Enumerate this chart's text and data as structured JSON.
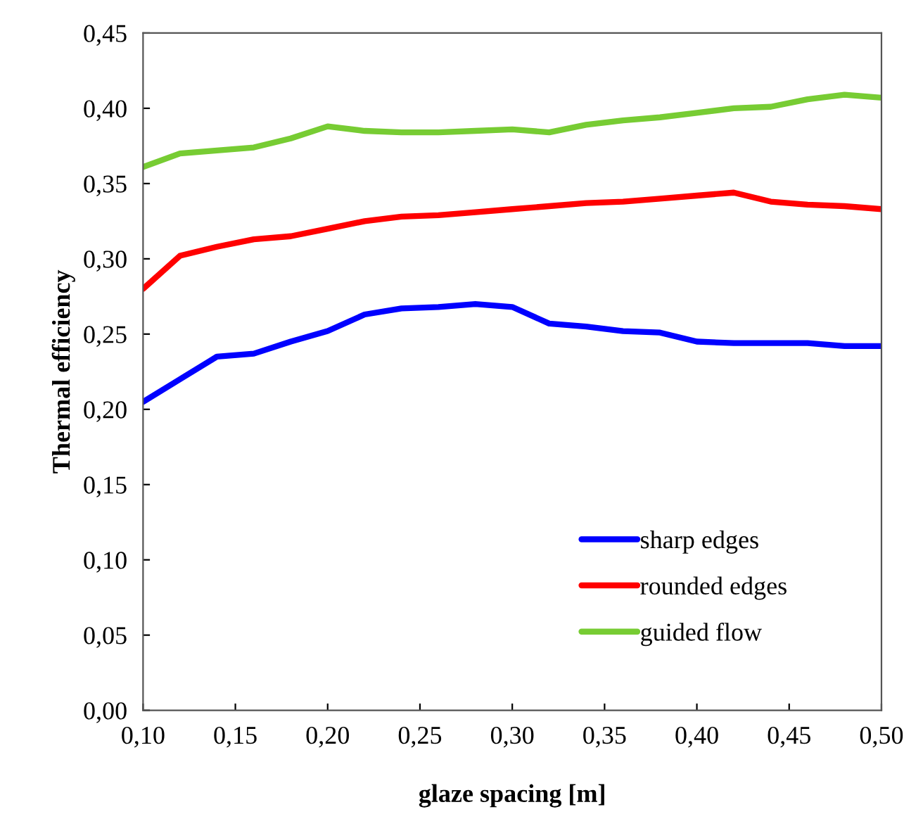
{
  "chart_data": {
    "type": "line",
    "xlabel": "glaze spacing [m]",
    "ylabel": "Thermal efficiency",
    "x": [
      0.1,
      0.12,
      0.14,
      0.16,
      0.18,
      0.2,
      0.22,
      0.24,
      0.26,
      0.28,
      0.3,
      0.32,
      0.34,
      0.36,
      0.38,
      0.4,
      0.42,
      0.44,
      0.46,
      0.48,
      0.5
    ],
    "series": [
      {
        "name": "sharp edges",
        "color": "#0000ff",
        "values": [
          0.205,
          0.22,
          0.235,
          0.237,
          0.245,
          0.252,
          0.263,
          0.267,
          0.268,
          0.27,
          0.268,
          0.257,
          0.255,
          0.252,
          0.251,
          0.245,
          0.244,
          0.244,
          0.244,
          0.242,
          0.242
        ]
      },
      {
        "name": "rounded edges",
        "color": "#ff0000",
        "values": [
          0.28,
          0.302,
          0.308,
          0.313,
          0.315,
          0.32,
          0.325,
          0.328,
          0.329,
          0.331,
          0.333,
          0.335,
          0.337,
          0.338,
          0.34,
          0.342,
          0.344,
          0.338,
          0.336,
          0.335,
          0.333
        ]
      },
      {
        "name": "guided flow",
        "color": "#77cc33",
        "values": [
          0.361,
          0.37,
          0.372,
          0.374,
          0.38,
          0.388,
          0.385,
          0.384,
          0.384,
          0.385,
          0.386,
          0.384,
          0.389,
          0.392,
          0.394,
          0.397,
          0.4,
          0.401,
          0.406,
          0.409,
          0.407
        ]
      }
    ],
    "xlim": [
      0.1,
      0.5
    ],
    "ylim": [
      0.0,
      0.45
    ],
    "xticks": [
      {
        "value": 0.1,
        "label": "0,10"
      },
      {
        "value": 0.15,
        "label": "0,15"
      },
      {
        "value": 0.2,
        "label": "0,20"
      },
      {
        "value": 0.25,
        "label": "0,25"
      },
      {
        "value": 0.3,
        "label": "0,30"
      },
      {
        "value": 0.35,
        "label": "0,35"
      },
      {
        "value": 0.4,
        "label": "0,40"
      },
      {
        "value": 0.45,
        "label": "0,45"
      },
      {
        "value": 0.5,
        "label": "0,50"
      }
    ],
    "yticks": [
      {
        "value": 0.0,
        "label": "0,00"
      },
      {
        "value": 0.05,
        "label": "0,05"
      },
      {
        "value": 0.1,
        "label": "0,10"
      },
      {
        "value": 0.15,
        "label": "0,15"
      },
      {
        "value": 0.2,
        "label": "0,20"
      },
      {
        "value": 0.25,
        "label": "0,25"
      },
      {
        "value": 0.3,
        "label": "0,30"
      },
      {
        "value": 0.35,
        "label": "0,35"
      },
      {
        "value": 0.4,
        "label": "0,40"
      },
      {
        "value": 0.45,
        "label": "0,45"
      }
    ],
    "grid": false,
    "legend": "bottom right"
  }
}
